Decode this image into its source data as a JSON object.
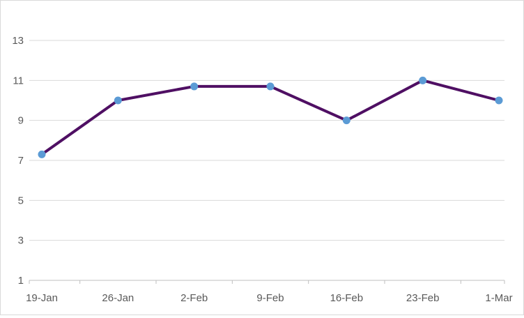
{
  "chart_data": {
    "type": "line",
    "categories": [
      "19-Jan",
      "26-Jan",
      "2-Feb",
      "9-Feb",
      "16-Feb",
      "23-Feb",
      "1-Mar"
    ],
    "values": [
      7.3,
      10.0,
      10.7,
      10.7,
      9.0,
      11.0,
      10.0
    ],
    "yticks": [
      "1",
      "3",
      "5",
      "7",
      "9",
      "11",
      "13"
    ],
    "ylim": [
      1,
      13
    ],
    "grid": true,
    "colors": {
      "line": "#4f0f63",
      "marker": "#5b9bd5",
      "grid": "#d9d9d9",
      "axis": "#bfbfbf"
    }
  }
}
